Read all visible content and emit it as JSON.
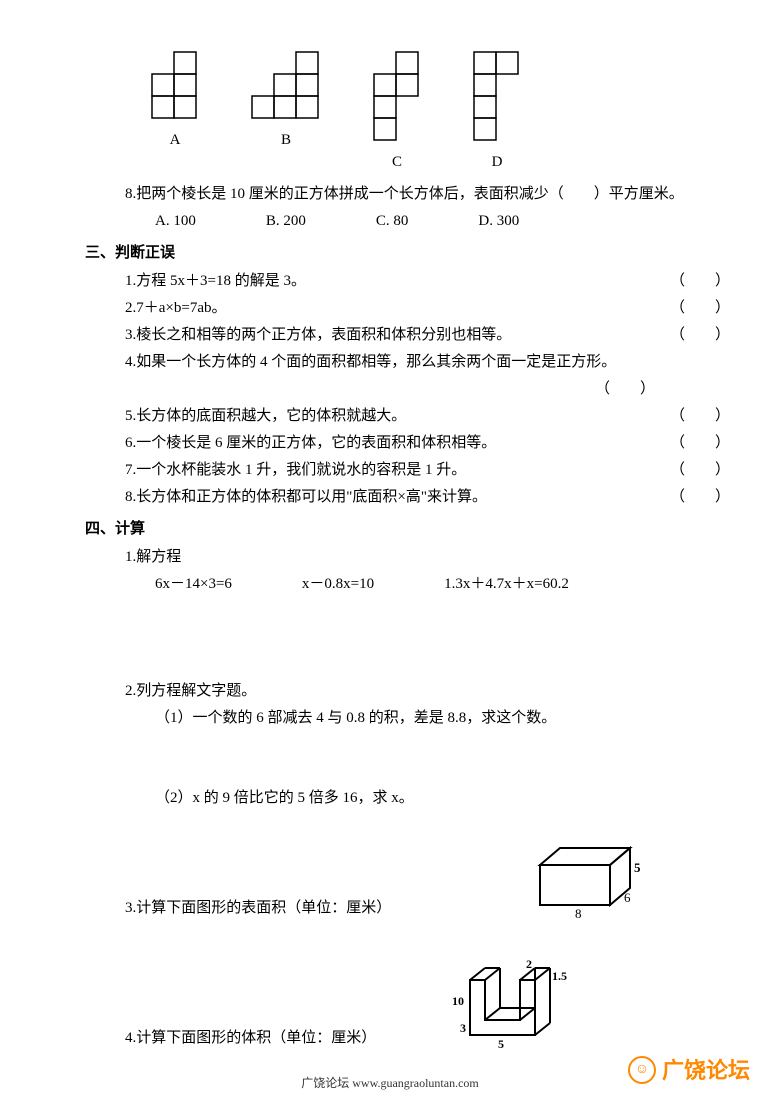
{
  "shapes": {
    "labels": [
      "A",
      "B",
      "C",
      "D"
    ],
    "cell_size": 22,
    "stroke": "#000000",
    "stroke_width": 1.5,
    "A": [
      [
        1,
        0
      ],
      [
        0,
        1
      ],
      [
        1,
        1
      ],
      [
        0,
        2
      ],
      [
        1,
        2
      ]
    ],
    "B": [
      [
        2,
        0
      ],
      [
        1,
        1
      ],
      [
        2,
        1
      ],
      [
        0,
        2
      ],
      [
        1,
        2
      ],
      [
        2,
        2
      ]
    ],
    "C": [
      [
        1,
        0
      ],
      [
        0,
        1
      ],
      [
        1,
        1
      ],
      [
        0,
        2
      ],
      [
        0,
        3
      ]
    ],
    "D": [
      [
        0,
        0
      ],
      [
        1,
        0
      ],
      [
        0,
        1
      ],
      [
        0,
        2
      ],
      [
        0,
        3
      ]
    ]
  },
  "q8": {
    "num": "8.",
    "text": "把两个棱长是 10 厘米的正方体拼成一个长方体后，表面积减少（　　）平方厘米。",
    "opts": [
      "A. 100",
      "B. 200",
      "C. 80",
      "D. 300"
    ]
  },
  "section3": {
    "title": "三、判断正误",
    "items": [
      {
        "num": "1.",
        "text": "方程 5x＋3=18 的解是 3。",
        "paren": "（　　）"
      },
      {
        "num": "2.",
        "text": "7＋a×b=7ab。",
        "paren": "（　　）"
      },
      {
        "num": "3.",
        "text": "棱长之和相等的两个正方体，表面积和体积分别也相等。",
        "paren": "（　　）"
      },
      {
        "num": "4.",
        "text": "如果一个长方体的 4 个面的面积都相等，那么其余两个面一定是正方形。",
        "paren": "",
        "paren_below": "（　　）"
      },
      {
        "num": "5.",
        "text": "长方体的底面积越大，它的体积就越大。",
        "paren": "（　　）"
      },
      {
        "num": "6.",
        "text": "一个棱长是 6 厘米的正方体，它的表面积和体积相等。",
        "paren": "（　　）"
      },
      {
        "num": "7.",
        "text": "一个水杯能装水 1 升，我们就说水的容积是 1 升。",
        "paren": "（　　）"
      },
      {
        "num": "8.",
        "text": "长方体和正方体的体积都可以用\"底面积×高\"来计算。",
        "paren": "（　　）"
      }
    ]
  },
  "section4": {
    "title": "四、计算",
    "q1": {
      "num": "1.",
      "text": "解方程",
      "eqs": [
        "6x－14×3=6",
        "x－0.8x=10",
        "1.3x＋4.7x＋x=60.2"
      ]
    },
    "q2": {
      "num": "2.",
      "text": "列方程解文字题。",
      "sub1": "（1）一个数的 6 部减去 4 与 0.8 的积，差是 8.8，求这个数。",
      "sub2": "（2）x 的 9 倍比它的 5 倍多 16，求 x。"
    },
    "q3": {
      "num": "3.",
      "text": "计算下面图形的表面积（单位：厘米）",
      "dims": {
        "w": "8",
        "d": "6",
        "h": "5"
      }
    },
    "q4": {
      "num": "4.",
      "text": "计算下面图形的体积（单位：厘米）",
      "dims": {
        "a": "10",
        "b": "2",
        "c": "1.5",
        "d": "3",
        "e": "5"
      }
    }
  },
  "footer": "广饶论坛 www.guangraoluntan.com",
  "logo": {
    "icon": "☺",
    "text": "广饶论坛",
    "color": "#ff8800"
  }
}
